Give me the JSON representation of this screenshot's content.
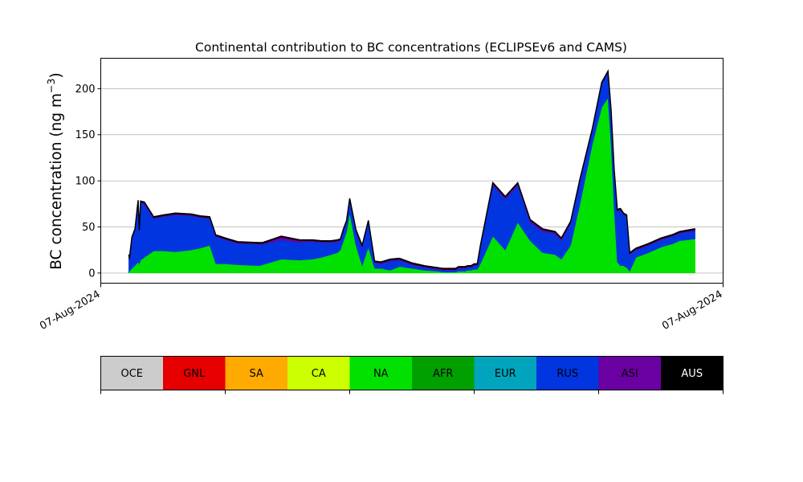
{
  "chart_data": {
    "type": "area",
    "stacked": true,
    "title": "Continental contribution to BC concentrations (ECLIPSEv6 and CAMS)",
    "ylabel": "BC concentration (ng m",
    "ylabel_sup": "−3",
    "ylabel_close": ")",
    "xlim": [
      0,
      100
    ],
    "ylim": [
      -11,
      233
    ],
    "yticks": [
      0,
      50,
      100,
      150,
      200
    ],
    "xticks": [
      {
        "x": 0,
        "label": "07-Aug-2024"
      },
      {
        "x": 100,
        "label": "07-Aug-2024"
      }
    ],
    "grid": "horizontal",
    "x": [
      4.5,
      4.6,
      5.0,
      5.5,
      6.0,
      6.2,
      6.4,
      7.0,
      8.5,
      10.0,
      12.0,
      14.5,
      16.0,
      17.5,
      18.5,
      18.7,
      20.0,
      22.0,
      25.5,
      26.0,
      29.0,
      32.0,
      34.0,
      35.5,
      37.0,
      38.0,
      38.5,
      39.0,
      39.5,
      40.0,
      41.0,
      42.0,
      43.0,
      44.0,
      45.0,
      46.5,
      48.0,
      50.0,
      52.0,
      54.0,
      55.0,
      56.0,
      57.0,
      57.5,
      58.0,
      58.5,
      59.0,
      59.5,
      60.0,
      60.5,
      61.0,
      63.0,
      65.0,
      67.0,
      69.0,
      71.0,
      73.0,
      74.0,
      75.5,
      77.0,
      79.0,
      80.5,
      81.5,
      82.0,
      82.5,
      83.0,
      83.5,
      84.0,
      84.5,
      85.0,
      86.0,
      88.0,
      90.0,
      92.0,
      93.0,
      95.5
    ],
    "series": [
      {
        "name": "NA",
        "color": "#00e100",
        "values": [
          0,
          2,
          5,
          8,
          12,
          10,
          14,
          17,
          24,
          24,
          23,
          25,
          27,
          30,
          10,
          10,
          10,
          9,
          8,
          9,
          15,
          14,
          15,
          17,
          20,
          22,
          25,
          35,
          45,
          65,
          30,
          8,
          28,
          5,
          5,
          3,
          7,
          5,
          3,
          2,
          1,
          1,
          1,
          2,
          2,
          2,
          3,
          3,
          4,
          4,
          10,
          40,
          25,
          55,
          35,
          22,
          20,
          15,
          30,
          75,
          140,
          180,
          190,
          140,
          70,
          12,
          8,
          8,
          6,
          2,
          17,
          22,
          28,
          32,
          35,
          37
        ]
      },
      {
        "name": "RUS",
        "color": "#0035e0",
        "values": [
          18,
          12,
          32,
          38,
          65,
          35,
          62,
          58,
          35,
          37,
          40,
          37,
          33,
          29,
          29,
          29,
          26,
          23,
          23,
          22,
          21,
          19,
          19,
          16,
          13,
          12,
          10,
          11,
          10,
          13,
          15,
          20,
          27,
          6,
          5,
          10,
          7,
          4,
          3,
          2,
          2,
          2,
          2,
          3,
          3,
          3,
          3,
          3,
          4,
          4,
          18,
          55,
          55,
          40,
          20,
          23,
          23,
          20,
          24,
          25,
          15,
          25,
          27,
          35,
          40,
          55,
          60,
          55,
          55,
          18,
          8,
          8,
          8,
          8,
          8,
          9
        ]
      },
      {
        "name": "ASI",
        "color": "#6a00a2",
        "values": [
          1,
          1,
          1,
          1,
          1,
          1,
          1,
          1,
          1,
          1,
          1,
          1,
          1,
          1,
          1,
          1,
          1,
          1,
          1,
          1,
          3,
          2,
          1,
          1,
          1,
          1,
          1,
          1,
          1,
          2,
          1,
          1,
          1,
          1,
          1,
          1,
          1,
          1,
          1,
          1,
          1,
          1,
          1,
          1,
          1,
          1,
          1,
          1,
          1,
          1,
          1,
          2,
          2,
          2,
          2,
          2,
          1,
          2,
          1,
          1,
          1,
          1,
          1,
          1,
          1,
          1,
          1,
          1,
          1,
          1,
          1,
          1,
          1,
          1,
          1,
          1
        ]
      },
      {
        "name": "AUS",
        "color": "#000000",
        "values": [
          1,
          1,
          1,
          1,
          1,
          1,
          1,
          1,
          1,
          1,
          1,
          1,
          1,
          1,
          1,
          1,
          1,
          1,
          1,
          1,
          1,
          1,
          1,
          1,
          1,
          1,
          1,
          1,
          1,
          1,
          1,
          1,
          1,
          1,
          1,
          1,
          1,
          1,
          1,
          1,
          1,
          1,
          1,
          1,
          1,
          1,
          1,
          1,
          1,
          1,
          1,
          1,
          1,
          1,
          1,
          1,
          1,
          1,
          1,
          1,
          1,
          1,
          1,
          1,
          1,
          1,
          1,
          1,
          1,
          1,
          1,
          1,
          1,
          1,
          1,
          1
        ]
      }
    ]
  },
  "legend": {
    "items": [
      {
        "label": "OCE",
        "color": "#cccccc",
        "text_color": "#000000"
      },
      {
        "label": "GNL",
        "color": "#e60000",
        "text_color": "#000000"
      },
      {
        "label": "SA",
        "color": "#ffaa00",
        "text_color": "#000000"
      },
      {
        "label": "CA",
        "color": "#ccff00",
        "text_color": "#000000"
      },
      {
        "label": "NA",
        "color": "#00e100",
        "text_color": "#000000"
      },
      {
        "label": "AFR",
        "color": "#00a000",
        "text_color": "#000000"
      },
      {
        "label": "EUR",
        "color": "#00a5bd",
        "text_color": "#000000"
      },
      {
        "label": "RUS",
        "color": "#0035e0",
        "text_color": "#000000"
      },
      {
        "label": "ASI",
        "color": "#6a00a2",
        "text_color": "#000000"
      },
      {
        "label": "AUS",
        "color": "#000000",
        "text_color": "#ffffff"
      }
    ]
  }
}
